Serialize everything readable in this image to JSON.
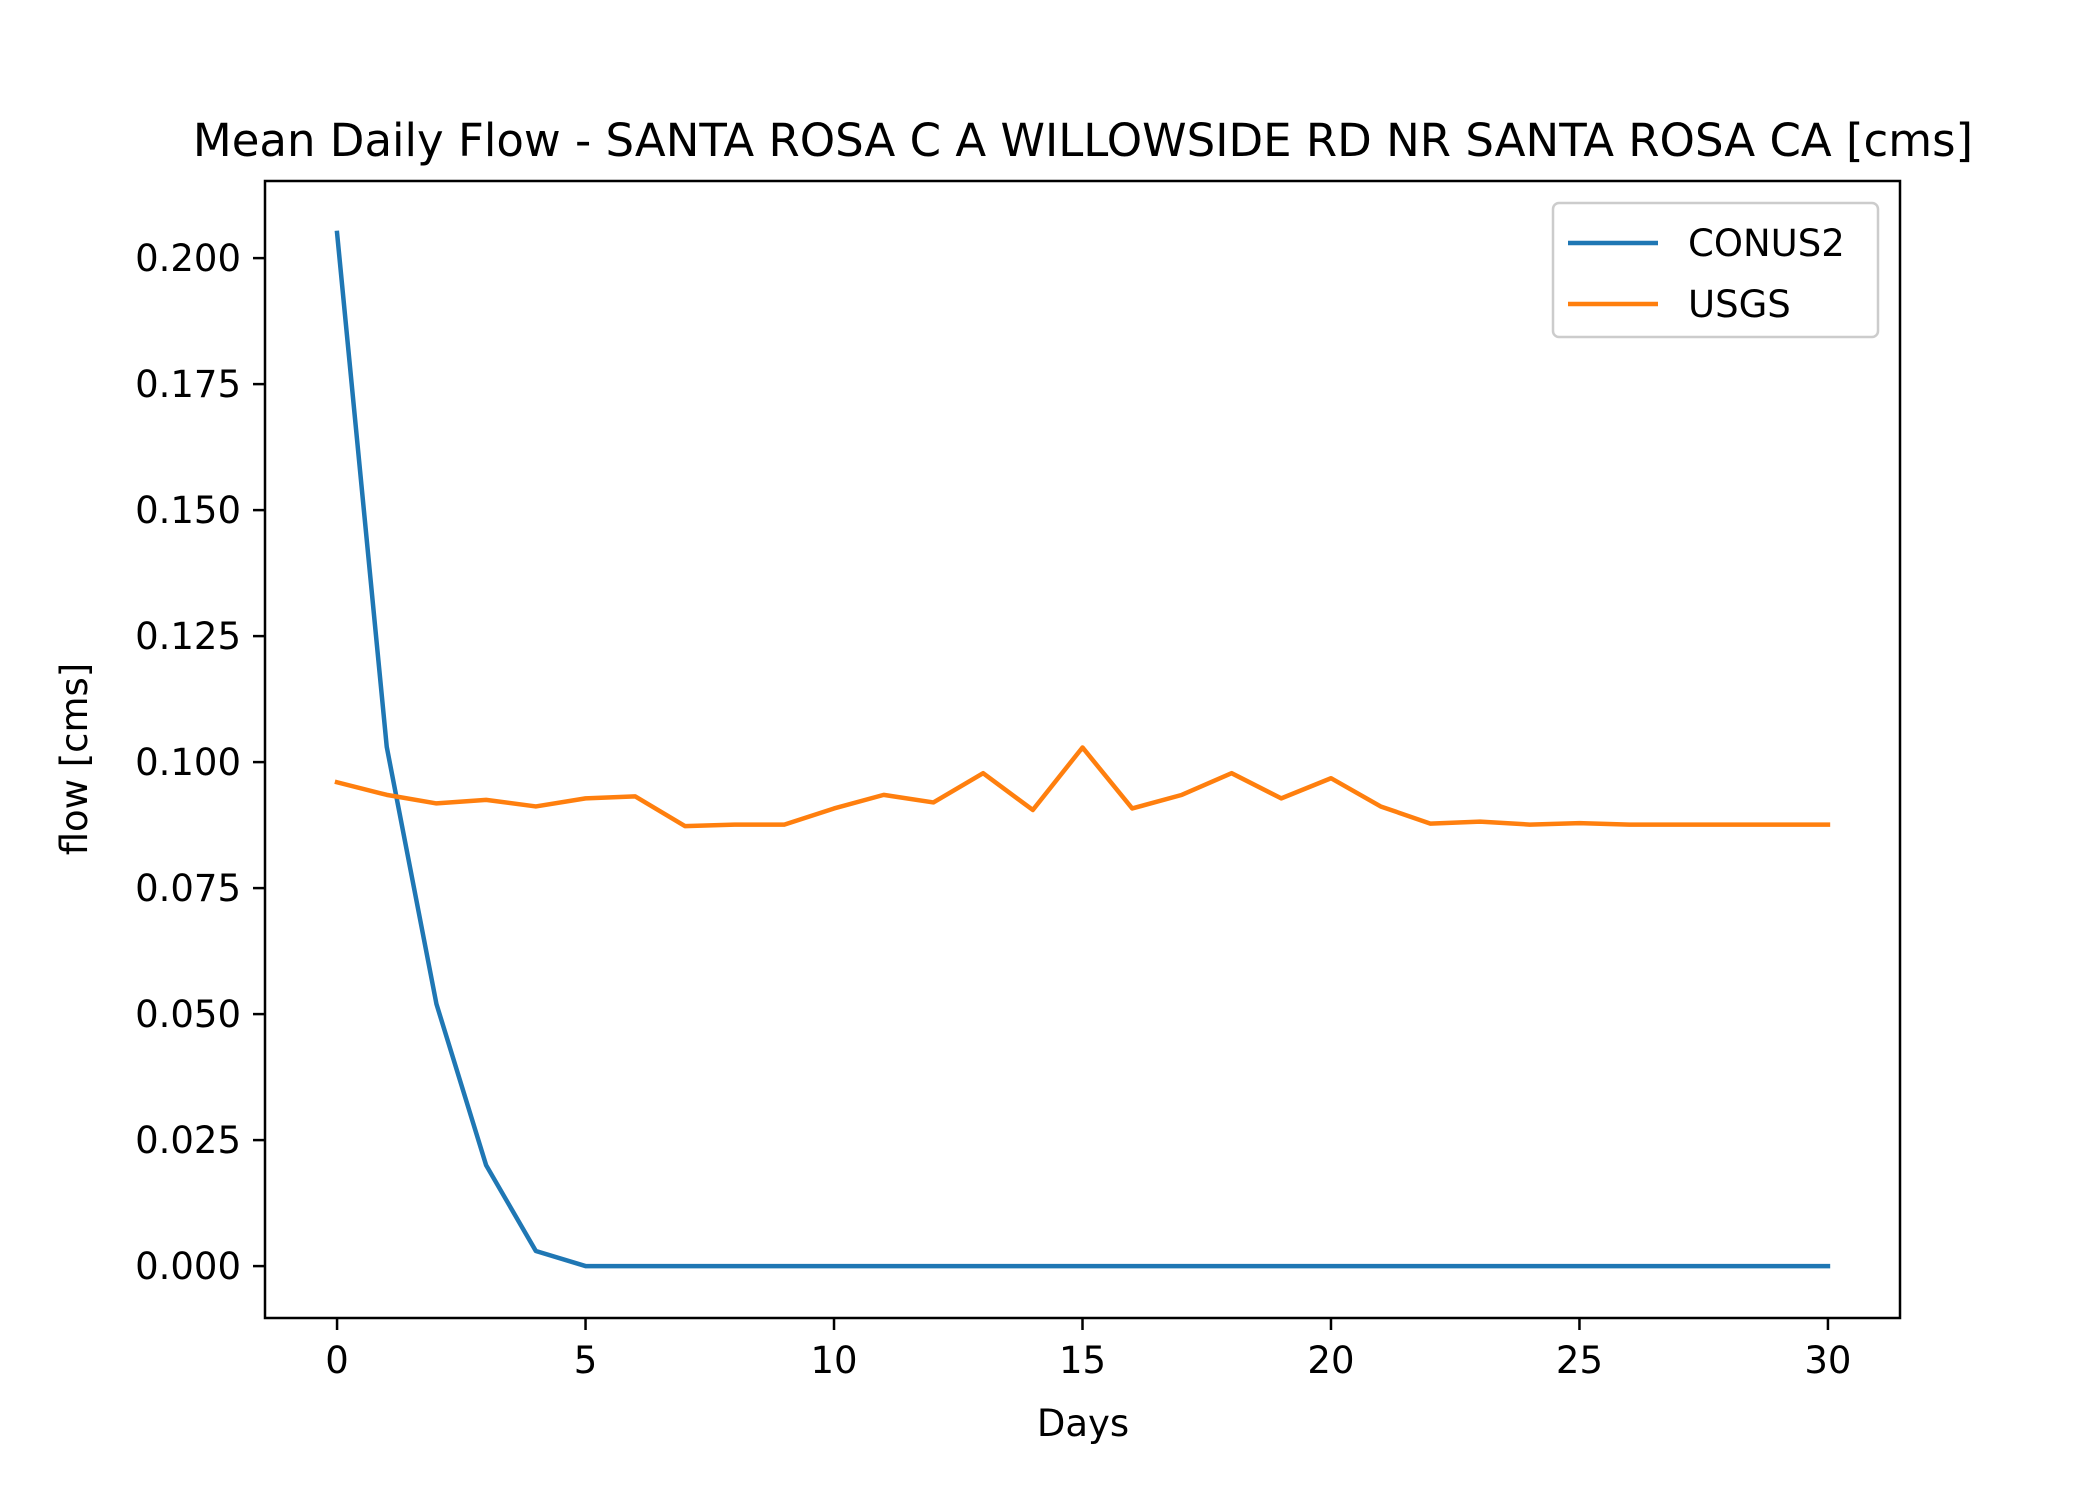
{
  "chart_data": {
    "type": "line",
    "title": "Mean Daily Flow - SANTA ROSA C A WILLOWSIDE RD NR SANTA ROSA CA [cms]",
    "xlabel": "Days",
    "ylabel": "flow [cms]",
    "xlim": [
      -1.45,
      31.45
    ],
    "ylim": [
      -0.0103,
      0.2153
    ],
    "xticks": [
      0,
      5,
      10,
      15,
      20,
      25,
      30
    ],
    "xtick_labels": [
      "0",
      "5",
      "10",
      "15",
      "20",
      "25",
      "30"
    ],
    "yticks": [
      0.0,
      0.025,
      0.05,
      0.075,
      0.1,
      0.125,
      0.15,
      0.175,
      0.2
    ],
    "ytick_labels": [
      "0.000",
      "0.025",
      "0.050",
      "0.075",
      "0.100",
      "0.125",
      "0.150",
      "0.175",
      "0.200"
    ],
    "grid": false,
    "legend_position": "top-right",
    "x": [
      0,
      1,
      2,
      3,
      4,
      5,
      6,
      7,
      8,
      9,
      10,
      11,
      12,
      13,
      14,
      15,
      16,
      17,
      18,
      19,
      20,
      21,
      22,
      23,
      24,
      25,
      26,
      27,
      28,
      29,
      30
    ],
    "series": [
      {
        "name": "CONUS2",
        "color": "#1f77b4",
        "values": [
          0.205,
          0.103,
          0.052,
          0.02,
          0.003,
          0.0,
          0.0,
          0.0,
          0.0,
          0.0,
          0.0,
          0.0,
          0.0,
          0.0,
          0.0,
          0.0,
          0.0,
          0.0,
          0.0,
          0.0,
          0.0,
          0.0,
          0.0,
          0.0,
          0.0,
          0.0,
          0.0,
          0.0,
          0.0,
          0.0,
          0.0
        ]
      },
      {
        "name": "USGS",
        "color": "#ff7f0e",
        "values": [
          0.096,
          0.0935,
          0.0918,
          0.0925,
          0.0912,
          0.0928,
          0.0932,
          0.0873,
          0.0876,
          0.0876,
          0.0908,
          0.0935,
          0.092,
          0.0978,
          0.0905,
          0.1029,
          0.0908,
          0.0935,
          0.0978,
          0.0928,
          0.0968,
          0.0912,
          0.0878,
          0.0882,
          0.0876,
          0.0879,
          0.0876,
          0.0876,
          0.0876,
          0.0876,
          0.0876
        ]
      }
    ]
  }
}
